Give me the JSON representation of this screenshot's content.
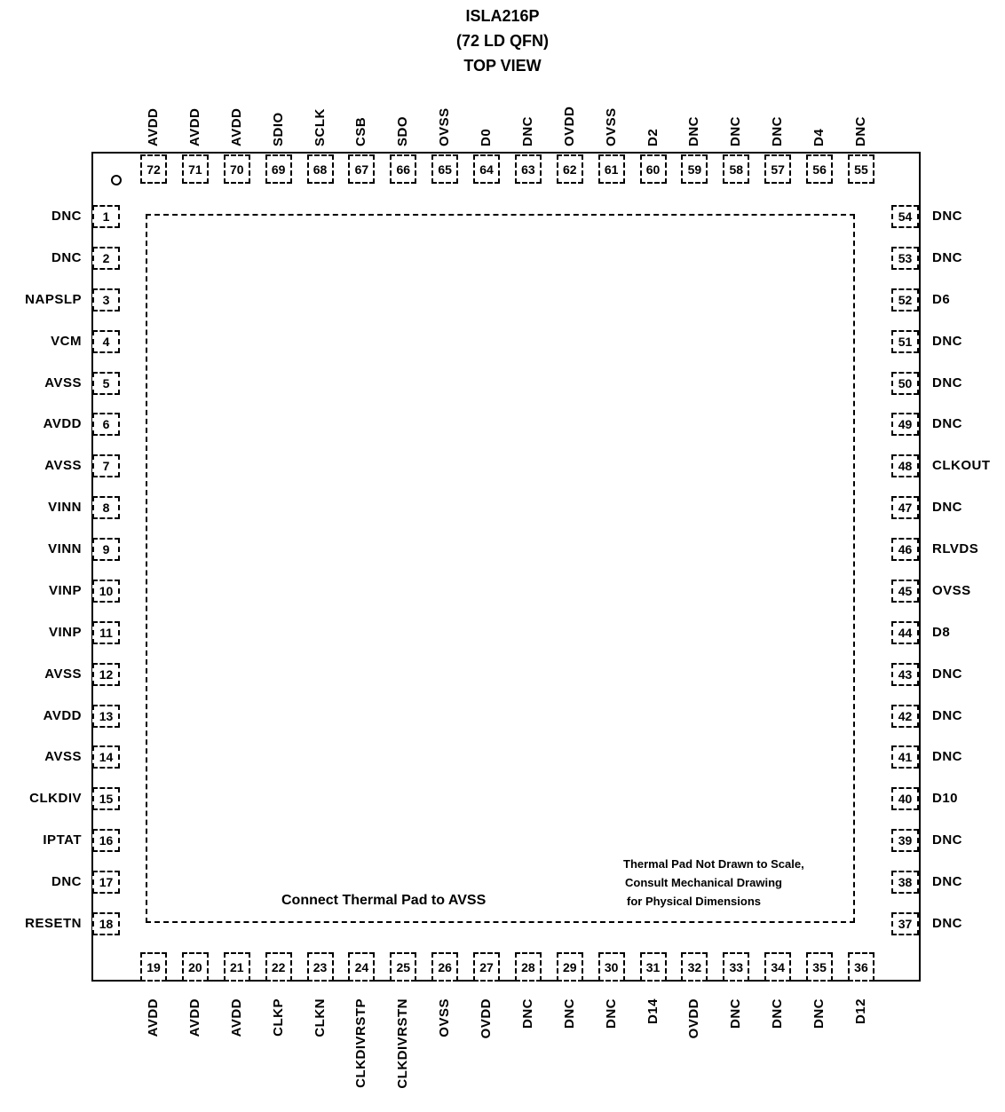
{
  "title": {
    "line1": "ISLA216P",
    "line2": "(72 LD QFN)",
    "line3": "TOP VIEW"
  },
  "notes": {
    "thermal_connect": "Connect Thermal Pad to AVSS",
    "scale_line1": "Thermal Pad Not Drawn to Scale,",
    "scale_line2": "Consult Mechanical Drawing",
    "scale_line3": "for Physical Dimensions"
  },
  "pins": {
    "left": [
      {
        "num": "1",
        "name": "DNC"
      },
      {
        "num": "2",
        "name": "DNC"
      },
      {
        "num": "3",
        "name": "NAPSLP"
      },
      {
        "num": "4",
        "name": "VCM"
      },
      {
        "num": "5",
        "name": "AVSS"
      },
      {
        "num": "6",
        "name": "AVDD"
      },
      {
        "num": "7",
        "name": "AVSS"
      },
      {
        "num": "8",
        "name": "VINN"
      },
      {
        "num": "9",
        "name": "VINN"
      },
      {
        "num": "10",
        "name": "VINP"
      },
      {
        "num": "11",
        "name": "VINP"
      },
      {
        "num": "12",
        "name": "AVSS"
      },
      {
        "num": "13",
        "name": "AVDD"
      },
      {
        "num": "14",
        "name": "AVSS"
      },
      {
        "num": "15",
        "name": "CLKDIV"
      },
      {
        "num": "16",
        "name": "IPTAT"
      },
      {
        "num": "17",
        "name": "DNC"
      },
      {
        "num": "18",
        "name": "RESETN"
      }
    ],
    "bottom": [
      {
        "num": "19",
        "name": "AVDD"
      },
      {
        "num": "20",
        "name": "AVDD"
      },
      {
        "num": "21",
        "name": "AVDD"
      },
      {
        "num": "22",
        "name": "CLKP"
      },
      {
        "num": "23",
        "name": "CLKN"
      },
      {
        "num": "24",
        "name": "CLKDIVRSTP"
      },
      {
        "num": "25",
        "name": "CLKDIVRSTN"
      },
      {
        "num": "26",
        "name": "OVSS"
      },
      {
        "num": "27",
        "name": "OVDD"
      },
      {
        "num": "28",
        "name": "DNC"
      },
      {
        "num": "29",
        "name": "DNC"
      },
      {
        "num": "30",
        "name": "DNC"
      },
      {
        "num": "31",
        "name": "D14"
      },
      {
        "num": "32",
        "name": "OVDD"
      },
      {
        "num": "33",
        "name": "DNC"
      },
      {
        "num": "34",
        "name": "DNC"
      },
      {
        "num": "35",
        "name": "DNC"
      },
      {
        "num": "36",
        "name": "D12"
      }
    ],
    "right": [
      {
        "num": "54",
        "name": "DNC"
      },
      {
        "num": "53",
        "name": "DNC"
      },
      {
        "num": "52",
        "name": "D6"
      },
      {
        "num": "51",
        "name": "DNC"
      },
      {
        "num": "50",
        "name": "DNC"
      },
      {
        "num": "49",
        "name": "DNC"
      },
      {
        "num": "48",
        "name": "CLKOUT"
      },
      {
        "num": "47",
        "name": "DNC"
      },
      {
        "num": "46",
        "name": "RLVDS"
      },
      {
        "num": "45",
        "name": "OVSS"
      },
      {
        "num": "44",
        "name": "D8"
      },
      {
        "num": "43",
        "name": "DNC"
      },
      {
        "num": "42",
        "name": "DNC"
      },
      {
        "num": "41",
        "name": "DNC"
      },
      {
        "num": "40",
        "name": "D10"
      },
      {
        "num": "39",
        "name": "DNC"
      },
      {
        "num": "38",
        "name": "DNC"
      },
      {
        "num": "37",
        "name": "DNC"
      }
    ],
    "top": [
      {
        "num": "72",
        "name": "AVDD"
      },
      {
        "num": "71",
        "name": "AVDD"
      },
      {
        "num": "70",
        "name": "AVDD"
      },
      {
        "num": "69",
        "name": "SDIO"
      },
      {
        "num": "68",
        "name": "SCLK"
      },
      {
        "num": "67",
        "name": "CSB"
      },
      {
        "num": "66",
        "name": "SDO"
      },
      {
        "num": "65",
        "name": "OVSS"
      },
      {
        "num": "64",
        "name": "D0"
      },
      {
        "num": "63",
        "name": "DNC"
      },
      {
        "num": "62",
        "name": "OVDD"
      },
      {
        "num": "61",
        "name": "OVSS"
      },
      {
        "num": "60",
        "name": "D2"
      },
      {
        "num": "59",
        "name": "DNC"
      },
      {
        "num": "58",
        "name": "DNC"
      },
      {
        "num": "57",
        "name": "DNC"
      },
      {
        "num": "56",
        "name": "D4"
      },
      {
        "num": "55",
        "name": "DNC"
      }
    ]
  }
}
